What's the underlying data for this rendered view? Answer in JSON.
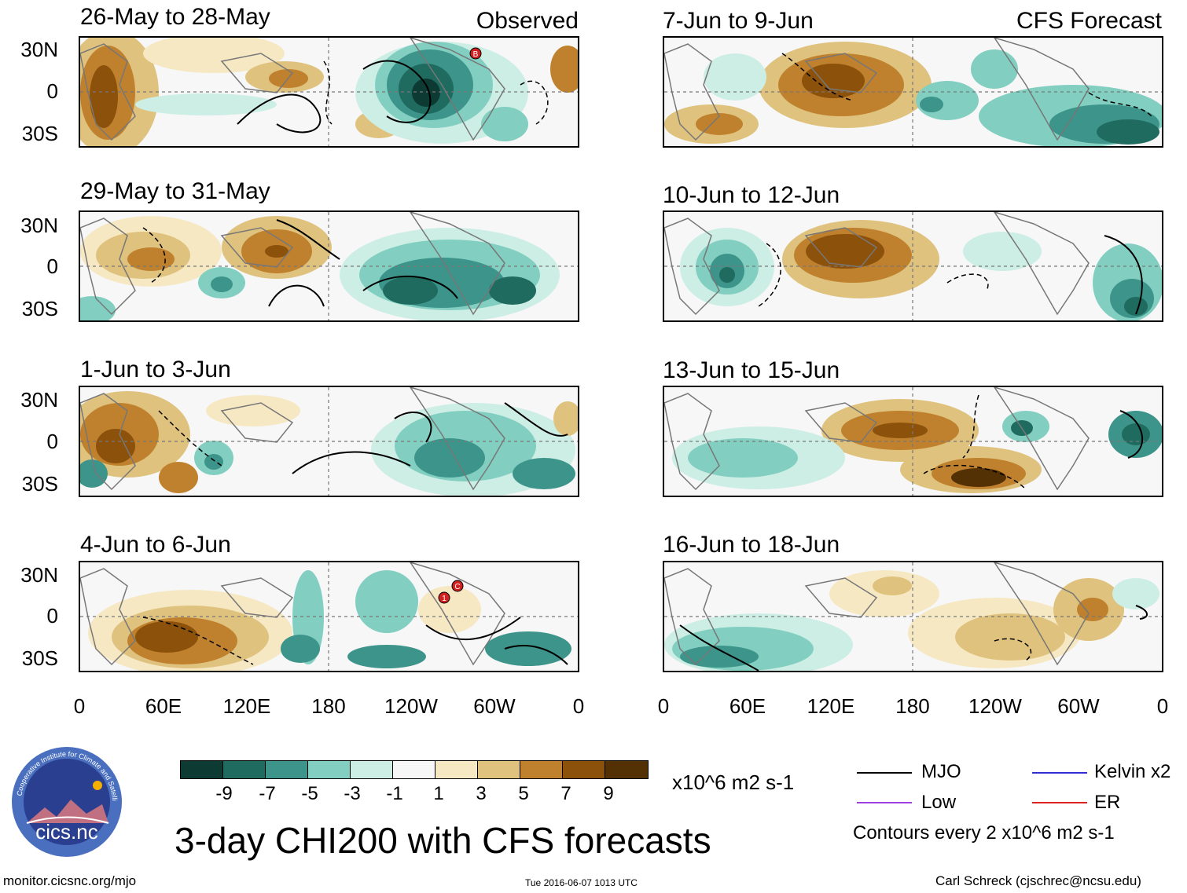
{
  "headers": {
    "observed": "Observed",
    "forecast": "CFS Forecast"
  },
  "panels_observed": [
    {
      "title": "26-May to 28-May"
    },
    {
      "title": "29-May to 31-May"
    },
    {
      "title": "1-Jun to 3-Jun"
    },
    {
      "title": "4-Jun to 6-Jun"
    }
  ],
  "panels_forecast": [
    {
      "title": "7-Jun to 9-Jun"
    },
    {
      "title": "10-Jun to 12-Jun"
    },
    {
      "title": "13-Jun to 15-Jun"
    },
    {
      "title": "16-Jun to 18-Jun"
    }
  ],
  "lat_labels": [
    "30N",
    "0",
    "30S"
  ],
  "lon_labels": [
    "0",
    "60E",
    "120E",
    "180",
    "120W",
    "60W",
    "0"
  ],
  "storm_markers": {
    "b": "B",
    "one": "1",
    "c": "C"
  },
  "colorbar": {
    "colors": [
      "#0d3b33",
      "#1f6b5f",
      "#3d948a",
      "#82cfc1",
      "#cdeee5",
      "#f7f7f7",
      "#f6e8c3",
      "#dfc27d",
      "#bf812d",
      "#8c510a",
      "#543005"
    ],
    "ticks": [
      "-9",
      "-7",
      "-5",
      "-3",
      "-1",
      "1",
      "3",
      "5",
      "7",
      "9"
    ],
    "units": "x10^6 m2 s-1"
  },
  "legend": {
    "mjo": "MJO",
    "kelvin": "Kelvin x2",
    "low": "Low",
    "er": "ER",
    "contours_note": "Contours every 2 x10^6 m2 s-1",
    "colors": {
      "mjo": "#000000",
      "kelvin": "#2f2fd6",
      "low": "#a040e0",
      "er": "#e02020"
    }
  },
  "logo": {
    "ring_text": "Cooperative Institute for Climate and Satellites",
    "name": "cics.nc"
  },
  "main_title": "3-day CHI200 with CFS forecasts",
  "footer": {
    "website": "monitor.cicsnc.org/mjo",
    "timestamp": "Tue 2016-06-07 1013 UTC",
    "author": "Carl Schreck (cjschrec@ncsu.edu)"
  }
}
